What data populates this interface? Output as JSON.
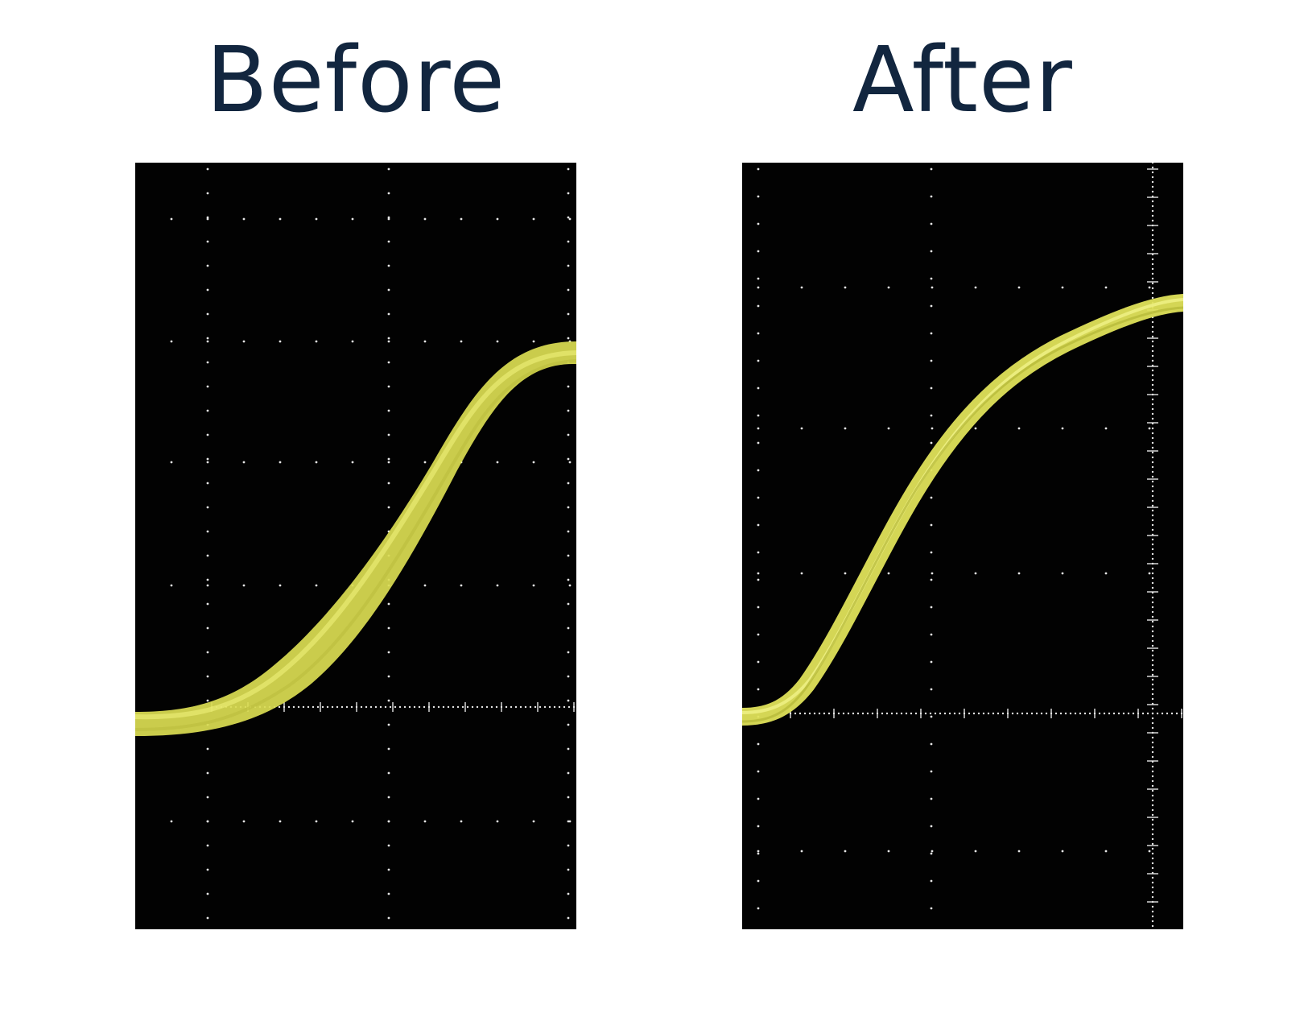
{
  "panels": {
    "before": {
      "title": "Before"
    },
    "after": {
      "title": "After"
    }
  },
  "colors": {
    "background": "#ffffff",
    "title_text": "#12263f",
    "screen": "#020202",
    "graticule": "#e6e6e6",
    "trace": "#dfe25a",
    "trace_core": "#c9cc45"
  }
}
